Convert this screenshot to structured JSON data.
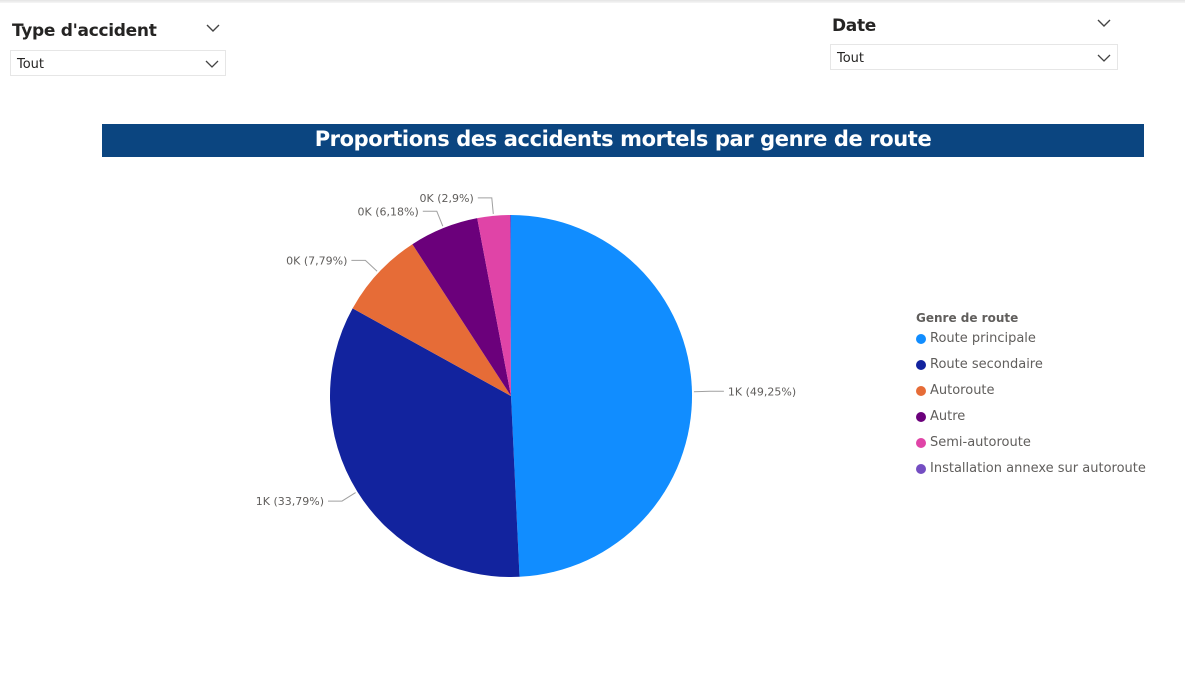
{
  "slicers": {
    "type": {
      "title": "Type d'accident",
      "value": "Tout"
    },
    "date": {
      "title": "Date",
      "value": "Tout"
    }
  },
  "colors": {
    "title_bar": "#0b4580",
    "route_principale": "#118dff",
    "route_secondaire": "#12239e",
    "autoroute": "#e66c37",
    "autre": "#6b007b",
    "semi_autoroute": "#e044a7",
    "installation_annexe": "#744ec2"
  },
  "chart_data": {
    "type": "pie",
    "title": "Proportions des accidents mortels par genre de route",
    "legend_title": "Genre de route",
    "legend_position": "right",
    "slices": [
      {
        "label": "Route principale",
        "percent": 49.25,
        "display": "1K (49,25%)",
        "color": "#118dff"
      },
      {
        "label": "Route secondaire",
        "percent": 33.79,
        "display": "1K (33,79%)",
        "color": "#12239e"
      },
      {
        "label": "Autoroute",
        "percent": 7.79,
        "display": "0K (7,79%)",
        "color": "#e66c37"
      },
      {
        "label": "Autre",
        "percent": 6.18,
        "display": "0K (6,18%)",
        "color": "#6b007b"
      },
      {
        "label": "Semi-autoroute",
        "percent": 2.9,
        "display": "0K (2,9%)",
        "color": "#e044a7"
      },
      {
        "label": "Installation annexe sur autoroute",
        "percent": 0.09,
        "display": "",
        "color": "#744ec2"
      }
    ]
  }
}
